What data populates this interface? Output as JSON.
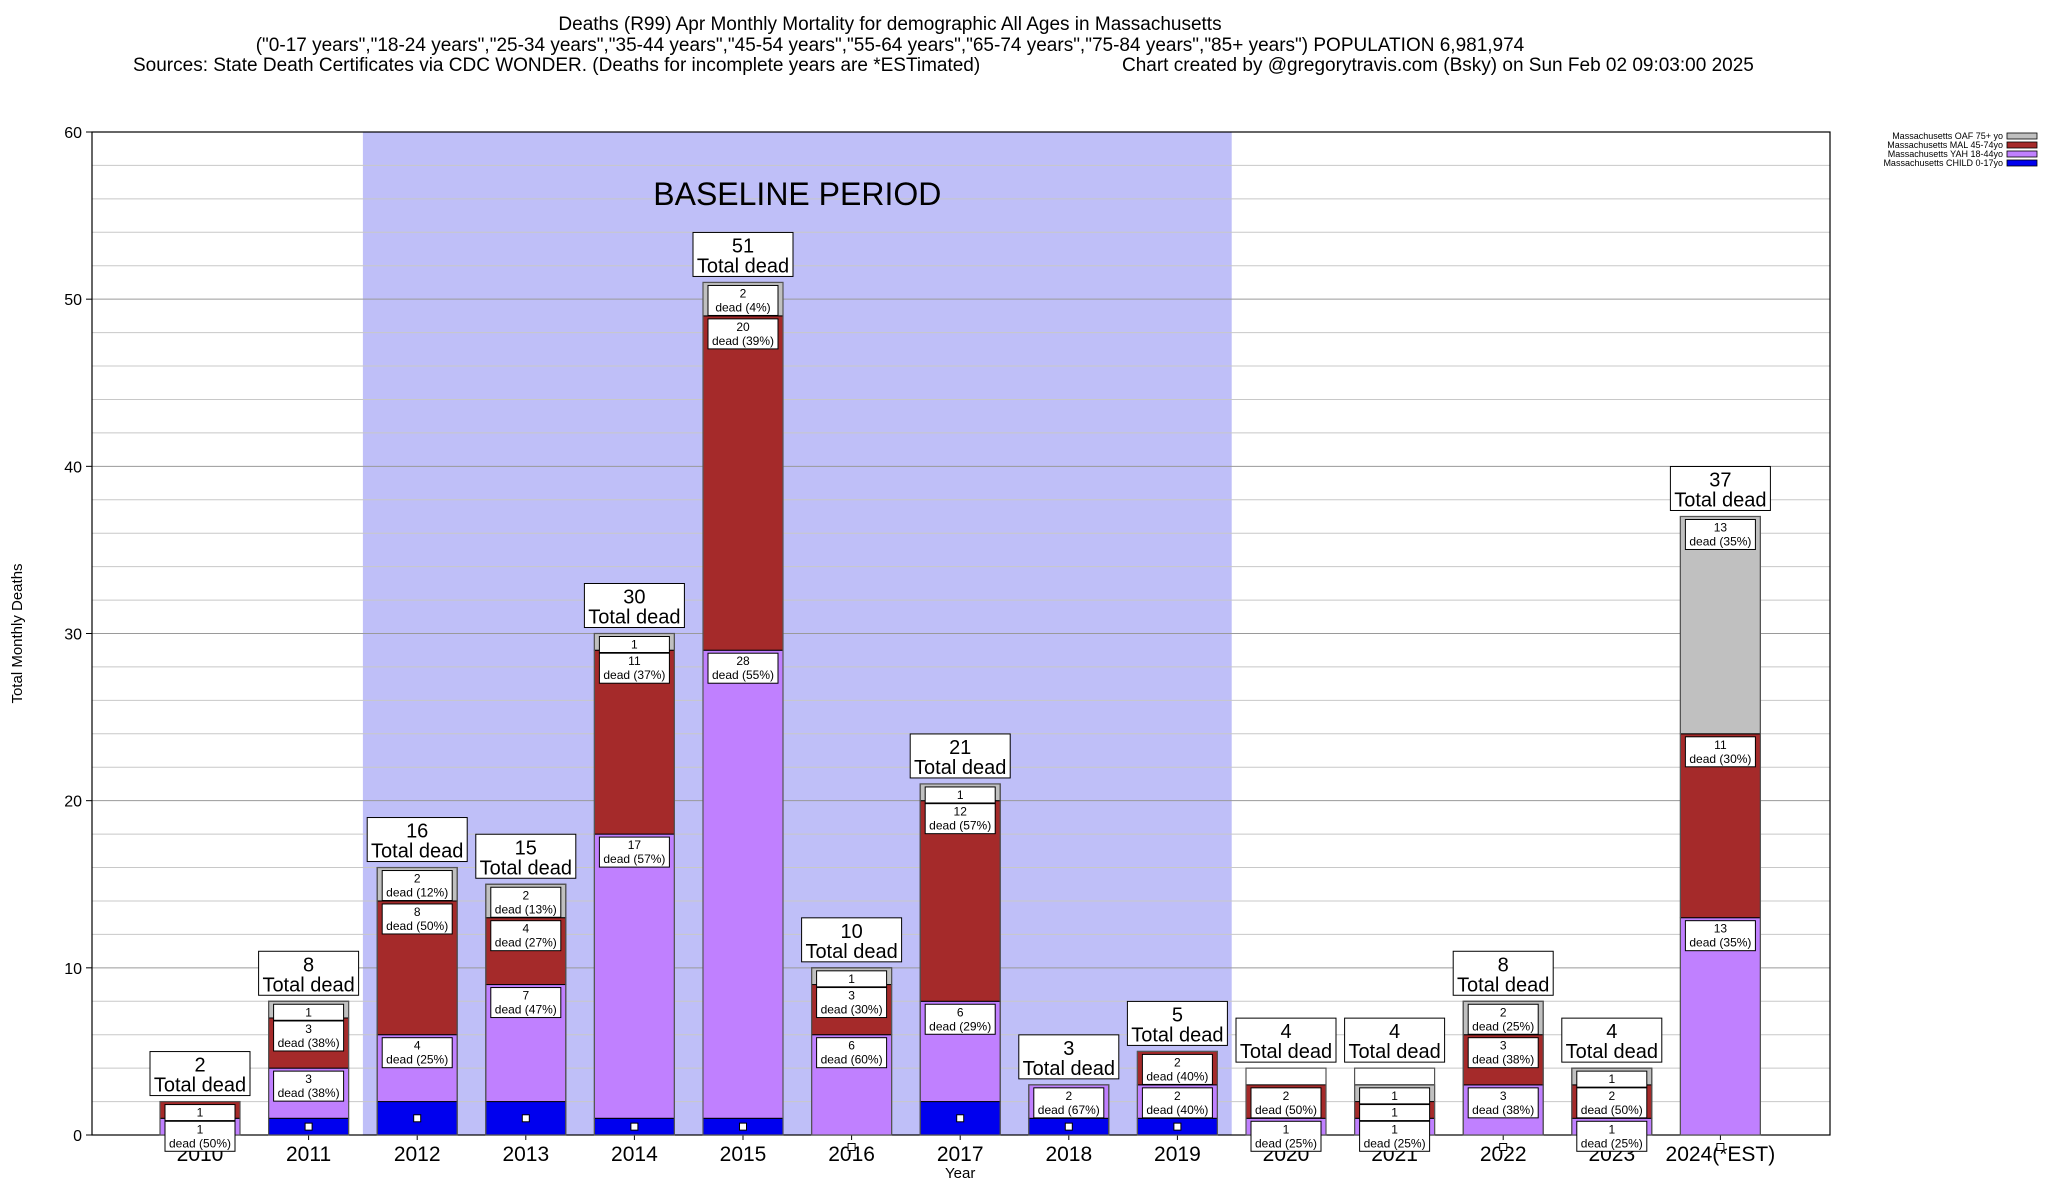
{
  "chart_data": {
    "type": "bar",
    "stacked": true,
    "title_line1": "Deaths (R99) Apr Monthly Mortality for demographic All Ages in Massachusetts",
    "title_line2": "(\"0-17 years\",\"18-24 years\",\"25-34 years\",\"35-44 years\",\"45-54 years\",\"55-64 years\",\"65-74 years\",\"75-84 years\",\"85+ years\") POPULATION 6,981,974",
    "sources": "Sources: State Death Certificates via CDC WONDER. (Deaths for incomplete years are *ESTimated)",
    "credit": "Chart created by @gregorytravis.com (Bsky) on Sun Feb 02 09:03:00 2025",
    "xlabel": "Year",
    "ylabel": "Total Monthly Deaths",
    "ylim": [
      0,
      60
    ],
    "yticks": [
      0,
      10,
      20,
      30,
      40,
      50,
      60
    ],
    "grid": true,
    "legend_position": "top-right",
    "baseline_label": "BASELINE PERIOD",
    "baseline_range": [
      "2012",
      "2019"
    ],
    "total_suffix": "Total dead",
    "categories": [
      "2010",
      "2011",
      "2012",
      "2013",
      "2014",
      "2015",
      "2016",
      "2017",
      "2018",
      "2019",
      "2020",
      "2021",
      "2022",
      "2023",
      "2024(*EST)"
    ],
    "totals": [
      2,
      8,
      16,
      15,
      30,
      51,
      10,
      21,
      3,
      5,
      4,
      4,
      8,
      4,
      37
    ],
    "series": [
      {
        "name": "Massachusetts CHILD 0-17yo",
        "color": "#0000ee",
        "values": [
          0,
          1,
          2,
          2,
          1,
          1,
          0,
          2,
          1,
          1,
          0,
          0,
          0,
          0,
          0
        ]
      },
      {
        "name": "Massachusetts YAH 18-44yo",
        "color": "#c080ff",
        "values": [
          1,
          3,
          4,
          7,
          17,
          28,
          6,
          6,
          2,
          2,
          1,
          1,
          3,
          1,
          13
        ]
      },
      {
        "name": "Massachusetts MAL 45-74yo",
        "color": "#a52a2a",
        "values": [
          1,
          3,
          8,
          4,
          11,
          20,
          3,
          12,
          0,
          2,
          2,
          1,
          3,
          2,
          11
        ]
      },
      {
        "name": "Massachusetts OAF 75+ yo",
        "color": "#c0c0c0",
        "values": [
          0,
          1,
          2,
          2,
          1,
          2,
          1,
          1,
          0,
          0,
          0,
          1,
          2,
          1,
          13
        ]
      }
    ],
    "segment_labels": [
      [
        null,
        {
          "n": "1",
          "p": "dead (50%)"
        },
        {
          "n": "1",
          "p": ""
        },
        null
      ],
      [
        null,
        {
          "n": "3",
          "p": "dead (38%)"
        },
        {
          "n": "3",
          "p": "dead (38%)"
        },
        {
          "n": "1",
          "p": ""
        }
      ],
      [
        null,
        {
          "n": "4",
          "p": "dead (25%)"
        },
        {
          "n": "8",
          "p": "dead (50%)"
        },
        {
          "n": "2",
          "p": "dead (12%)"
        }
      ],
      [
        null,
        {
          "n": "7",
          "p": "dead (47%)"
        },
        {
          "n": "4",
          "p": "dead (27%)"
        },
        {
          "n": "2",
          "p": "dead (13%)"
        }
      ],
      [
        null,
        {
          "n": "17",
          "p": "dead (57%)"
        },
        {
          "n": "11",
          "p": "dead (37%)"
        },
        {
          "n": "1",
          "p": ""
        }
      ],
      [
        null,
        {
          "n": "28",
          "p": "dead (55%)"
        },
        {
          "n": "20",
          "p": "dead (39%)"
        },
        {
          "n": "2",
          "p": "dead (4%)"
        }
      ],
      [
        null,
        {
          "n": "6",
          "p": "dead (60%)"
        },
        {
          "n": "3",
          "p": "dead (30%)"
        },
        {
          "n": "1",
          "p": ""
        }
      ],
      [
        null,
        {
          "n": "6",
          "p": "dead (29%)"
        },
        {
          "n": "12",
          "p": "dead (57%)"
        },
        {
          "n": "1",
          "p": ""
        }
      ],
      [
        null,
        {
          "n": "2",
          "p": "dead (67%)"
        },
        null,
        null
      ],
      [
        null,
        {
          "n": "2",
          "p": "dead (40%)"
        },
        {
          "n": "2",
          "p": "dead (40%)"
        },
        null
      ],
      [
        null,
        {
          "n": "1",
          "p": "dead (25%)"
        },
        {
          "n": "2",
          "p": "dead (50%)"
        },
        null
      ],
      [
        null,
        {
          "n": "1",
          "p": "dead (25%)"
        },
        {
          "n": "1",
          "p": ""
        },
        {
          "n": "1",
          "p": ""
        }
      ],
      [
        null,
        {
          "n": "3",
          "p": "dead (38%)"
        },
        {
          "n": "3",
          "p": "dead (38%)"
        },
        {
          "n": "2",
          "p": "dead (25%)"
        }
      ],
      [
        null,
        {
          "n": "1",
          "p": "dead (25%)"
        },
        {
          "n": "2",
          "p": "dead (50%)"
        },
        {
          "n": "1",
          "p": ""
        }
      ],
      [
        null,
        {
          "n": "13",
          "p": "dead (35%)"
        },
        {
          "n": "11",
          "p": "dead (30%)"
        },
        {
          "n": "13",
          "p": "dead (35%)"
        }
      ]
    ]
  }
}
